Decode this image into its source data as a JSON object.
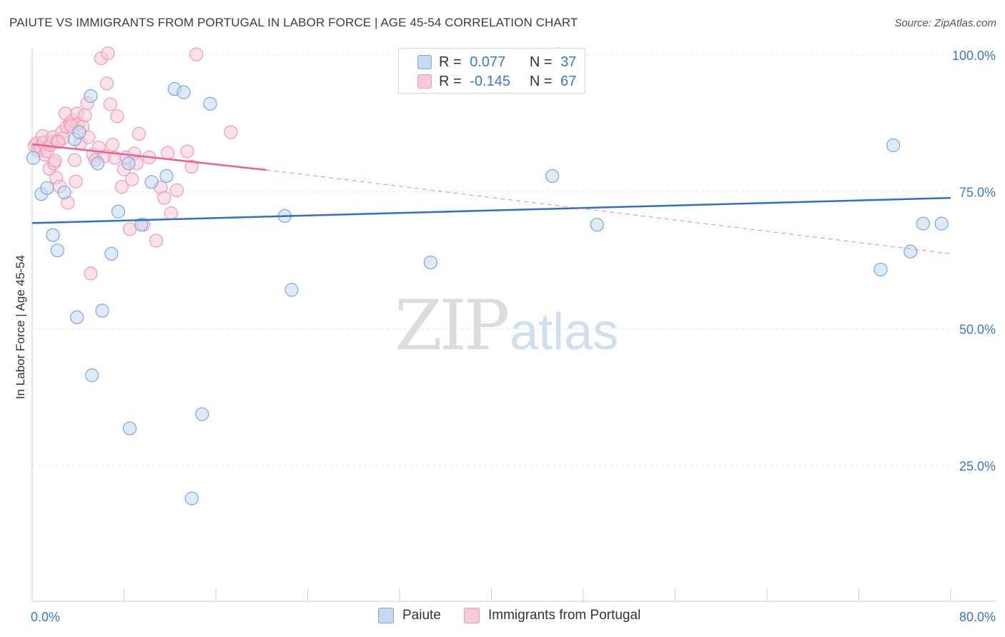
{
  "title": "PAIUTE VS IMMIGRANTS FROM PORTUGAL IN LABOR FORCE | AGE 45-54 CORRELATION CHART",
  "source": "Source: ZipAtlas.com",
  "watermark": {
    "zip": "ZIP",
    "atlas": "atlas"
  },
  "colors": {
    "blue_fill": "#c5d9f2",
    "blue_stroke": "#7aa6d9",
    "blue_line": "#2f6fc4",
    "pink_fill": "#f8c9d7",
    "pink_stroke": "#ec9bb5",
    "pink_line": "#e8628f",
    "axis_text": "#3a78c9",
    "grid": "#e3e3e3"
  },
  "legend_top": {
    "rows": [
      {
        "r_label": "R =",
        "r_value": "0.077",
        "n_label": "N =",
        "n_value": "37"
      },
      {
        "r_label": "R =",
        "r_value": "-0.145",
        "n_label": "N =",
        "n_value": "67"
      }
    ]
  },
  "legend_bottom": [
    "Paiute",
    "Immigrants from Portugal"
  ],
  "chart_data": {
    "type": "scatter",
    "title": "PAIUTE VS IMMIGRANTS FROM PORTUGAL IN LABOR FORCE | AGE 45-54 CORRELATION CHART",
    "xlabel": "",
    "ylabel": "In Labor Force | Age 45-54",
    "xlim": [
      0,
      80
    ],
    "ylim": [
      0,
      105
    ],
    "x_tick_labels": [
      "0.0%",
      "80.0%"
    ],
    "y_ticks": [
      25,
      50,
      75,
      100
    ],
    "y_tick_labels": [
      "25.0%",
      "50.0%",
      "75.0%",
      "100.0%"
    ],
    "grid": true,
    "legend": "bottom-center",
    "series": [
      {
        "name": "Paiute",
        "points": [
          [
            0.1,
            81.2
          ],
          [
            0.8,
            74.6
          ],
          [
            1.3,
            75.7
          ],
          [
            1.8,
            67.1
          ],
          [
            2.2,
            64.3
          ],
          [
            2.8,
            74.9
          ],
          [
            3.7,
            84.6
          ],
          [
            3.9,
            52.1
          ],
          [
            4.1,
            85.9
          ],
          [
            5.1,
            92.5
          ],
          [
            5.2,
            41.5
          ],
          [
            5.7,
            80.2
          ],
          [
            6.1,
            53.3
          ],
          [
            6.9,
            63.7
          ],
          [
            7.5,
            71.4
          ],
          [
            8.4,
            80.2
          ],
          [
            8.5,
            31.8
          ],
          [
            9.5,
            69.0
          ],
          [
            10.4,
            76.8
          ],
          [
            11.7,
            77.9
          ],
          [
            12.4,
            93.8
          ],
          [
            13.2,
            93.2
          ],
          [
            13.9,
            19.0
          ],
          [
            14.8,
            34.4
          ],
          [
            15.5,
            91.1
          ],
          [
            22.0,
            70.6
          ],
          [
            22.6,
            57.1
          ],
          [
            34.7,
            62.1
          ],
          [
            45.3,
            77.9
          ],
          [
            49.2,
            69.0
          ],
          [
            75.0,
            83.5
          ],
          [
            73.9,
            60.8
          ],
          [
            76.5,
            64.1
          ],
          [
            77.6,
            69.2
          ],
          [
            79.2,
            69.2
          ],
          [
            45.8,
            100.1
          ],
          [
            46.2,
            99.8
          ]
        ],
        "trend": {
          "x0": 0,
          "y0": 69.3,
          "x1": 80,
          "y1": 73.9
        }
      },
      {
        "name": "Immigrants from Portugal",
        "points": [
          [
            0.2,
            83.4
          ],
          [
            0.4,
            83.9
          ],
          [
            0.5,
            82.6
          ],
          [
            0.7,
            83.1
          ],
          [
            0.9,
            85.2
          ],
          [
            1.0,
            84.0
          ],
          [
            1.1,
            81.8
          ],
          [
            1.3,
            82.4
          ],
          [
            1.5,
            79.2
          ],
          [
            1.6,
            83.6
          ],
          [
            1.7,
            84.1
          ],
          [
            1.8,
            85.0
          ],
          [
            1.9,
            80.2
          ],
          [
            2.0,
            80.7
          ],
          [
            2.1,
            77.6
          ],
          [
            2.2,
            84.3
          ],
          [
            2.4,
            76.0
          ],
          [
            2.6,
            85.9
          ],
          [
            2.7,
            84.8
          ],
          [
            2.9,
            89.3
          ],
          [
            3.0,
            86.9
          ],
          [
            3.1,
            73.0
          ],
          [
            3.3,
            87.4
          ],
          [
            3.5,
            88.0
          ],
          [
            3.7,
            80.8
          ],
          [
            3.8,
            76.9
          ],
          [
            3.9,
            89.3
          ],
          [
            4.0,
            87.4
          ],
          [
            4.2,
            83.9
          ],
          [
            4.4,
            86.9
          ],
          [
            4.6,
            89.0
          ],
          [
            4.8,
            91.2
          ],
          [
            4.9,
            85.0
          ],
          [
            5.1,
            60.1
          ],
          [
            5.3,
            81.8
          ],
          [
            5.5,
            80.8
          ],
          [
            5.8,
            83.1
          ],
          [
            6.0,
            99.4
          ],
          [
            6.3,
            81.5
          ],
          [
            6.5,
            94.8
          ],
          [
            6.6,
            100.3
          ],
          [
            6.8,
            91.0
          ],
          [
            7.0,
            83.6
          ],
          [
            7.2,
            81.2
          ],
          [
            7.4,
            88.8
          ],
          [
            7.8,
            75.9
          ],
          [
            8.0,
            79.1
          ],
          [
            8.2,
            81.3
          ],
          [
            8.5,
            68.2
          ],
          [
            8.7,
            77.3
          ],
          [
            8.9,
            82.0
          ],
          [
            9.3,
            85.6
          ],
          [
            9.7,
            69.0
          ],
          [
            10.2,
            81.3
          ],
          [
            10.8,
            66.1
          ],
          [
            11.2,
            75.8
          ],
          [
            11.5,
            73.9
          ],
          [
            11.8,
            82.1
          ],
          [
            12.1,
            71.1
          ],
          [
            12.6,
            75.3
          ],
          [
            13.5,
            82.4
          ],
          [
            13.9,
            79.6
          ],
          [
            14.3,
            100.1
          ],
          [
            17.3,
            85.9
          ],
          [
            9.1,
            80.2
          ],
          [
            3.4,
            87.0
          ],
          [
            2.3,
            84.1
          ]
        ],
        "trend": {
          "x0": 0,
          "y0": 83.7,
          "x1": 20.4,
          "y1": 79.0
        },
        "trend_extension": {
          "x0": 20.4,
          "y0": 79.0,
          "x1": 80,
          "y1": 63.7
        }
      }
    ]
  }
}
